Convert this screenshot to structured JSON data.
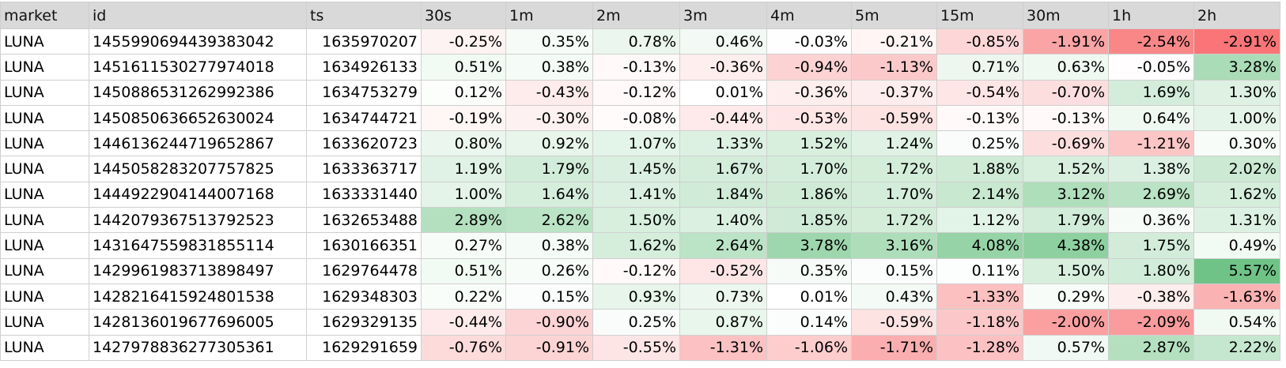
{
  "sheet": {
    "columns": [
      "market",
      "id",
      "ts",
      "30s",
      "1m",
      "2m",
      "3m",
      "4m",
      "5m",
      "15m",
      "30m",
      "1h",
      "2h"
    ],
    "rows": [
      [
        "LUNA",
        "1455990694439383042",
        "1635970207",
        "-0.25%",
        "0.35%",
        "0.78%",
        "0.46%",
        "-0.03%",
        "-0.21%",
        "-0.85%",
        "-1.91%",
        "-2.54%",
        "-2.91%"
      ],
      [
        "LUNA",
        "1451611530277974018",
        "1634926133",
        "0.51%",
        "0.38%",
        "-0.13%",
        "-0.36%",
        "-0.94%",
        "-1.13%",
        "0.71%",
        "0.63%",
        "-0.05%",
        "3.28%"
      ],
      [
        "LUNA",
        "1450886531262992386",
        "1634753279",
        "0.12%",
        "-0.43%",
        "-0.12%",
        "0.01%",
        "-0.36%",
        "-0.37%",
        "-0.54%",
        "-0.70%",
        "1.69%",
        "1.30%"
      ],
      [
        "LUNA",
        "1450850636652630024",
        "1634744721",
        "-0.19%",
        "-0.30%",
        "-0.08%",
        "-0.44%",
        "-0.53%",
        "-0.59%",
        "-0.13%",
        "-0.13%",
        "0.64%",
        "1.00%"
      ],
      [
        "LUNA",
        "1446136244719652867",
        "1633620723",
        "0.80%",
        "0.92%",
        "1.07%",
        "1.33%",
        "1.52%",
        "1.24%",
        "0.25%",
        "-0.69%",
        "-1.21%",
        "0.30%"
      ],
      [
        "LUNA",
        "1445058283207757825",
        "1633363717",
        "1.19%",
        "1.79%",
        "1.45%",
        "1.67%",
        "1.70%",
        "1.72%",
        "1.88%",
        "1.52%",
        "1.38%",
        "2.02%"
      ],
      [
        "LUNA",
        "1444922904144007168",
        "1633331440",
        "1.00%",
        "1.64%",
        "1.41%",
        "1.84%",
        "1.86%",
        "1.70%",
        "2.14%",
        "3.12%",
        "2.69%",
        "1.62%"
      ],
      [
        "LUNA",
        "1442079367513792523",
        "1632653488",
        "2.89%",
        "2.62%",
        "1.50%",
        "1.40%",
        "1.85%",
        "1.72%",
        "1.12%",
        "1.79%",
        "0.36%",
        "1.31%"
      ],
      [
        "LUNA",
        "1431647559831855114",
        "1630166351",
        "0.27%",
        "0.38%",
        "1.62%",
        "2.64%",
        "3.78%",
        "3.16%",
        "4.08%",
        "4.38%",
        "1.75%",
        "0.49%"
      ],
      [
        "LUNA",
        "1429961983713898497",
        "1629764478",
        "0.51%",
        "0.26%",
        "-0.12%",
        "-0.52%",
        "0.35%",
        "0.15%",
        "0.11%",
        "1.50%",
        "1.80%",
        "5.57%"
      ],
      [
        "LUNA",
        "1428216415924801538",
        "1629348303",
        "0.22%",
        "0.15%",
        "0.93%",
        "0.73%",
        "0.01%",
        "0.43%",
        "-1.33%",
        "0.29%",
        "-0.38%",
        "-1.63%"
      ],
      [
        "LUNA",
        "1428136019677696005",
        "1629329135",
        "-0.44%",
        "-0.90%",
        "0.25%",
        "0.87%",
        "0.14%",
        "-0.59%",
        "-1.18%",
        "-2.00%",
        "-2.09%",
        "0.54%"
      ],
      [
        "LUNA",
        "1427978836277305361",
        "1629291659",
        "-0.76%",
        "-0.91%",
        "-0.55%",
        "-1.31%",
        "-1.06%",
        "-1.71%",
        "-1.28%",
        "0.57%",
        "2.87%",
        "2.22%"
      ]
    ],
    "colors": {
      "header_bg": "#d9d9d9",
      "grid": "#cfcfcf",
      "positive": "#63be7b",
      "negative": "#f8696b",
      "neutral": "#ffffff"
    }
  }
}
